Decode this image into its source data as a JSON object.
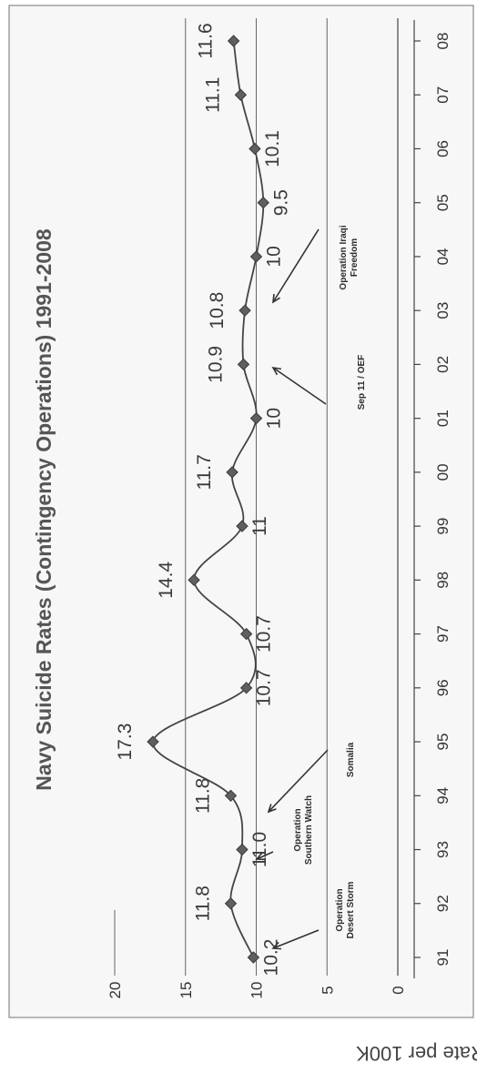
{
  "chart_data": {
    "type": "line",
    "title": "Navy Suicide Rates (Contingency Operations) 1991-2008",
    "ylabel": "Rate per 100K",
    "xlabel": "",
    "x": [
      "91",
      "92",
      "93",
      "94",
      "95",
      "96",
      "97",
      "98",
      "99",
      "00",
      "01",
      "02",
      "03",
      "04",
      "05",
      "06",
      "07",
      "08"
    ],
    "series": [
      {
        "values": [
          10.2,
          11.8,
          11.0,
          11.8,
          17.3,
          10.7,
          10.7,
          14.4,
          11.0,
          11.7,
          10.0,
          10.9,
          10.8,
          10.0,
          9.5,
          10.1,
          11.1,
          11.6
        ]
      }
    ],
    "data_labels": [
      "10.2",
      "11.8",
      "11.0",
      "11.8",
      "17.3",
      "10.7",
      "10.7",
      "14.4",
      "11",
      "11.7",
      "10",
      "10.9",
      "10.8",
      "10",
      "9.5",
      "10.1",
      "11.1",
      "11.6"
    ],
    "ylim": [
      0,
      20
    ],
    "yticks": [
      "0",
      "5",
      "10",
      "15",
      "20"
    ],
    "grid": true,
    "annotations": [
      {
        "lines": [
          "Operation",
          "Desert Storm"
        ],
        "year": "91"
      },
      {
        "lines": [
          "Operation",
          "Southern Watch"
        ],
        "year": "92"
      },
      {
        "lines": [
          "Somalia"
        ],
        "year": "93"
      },
      {
        "lines": [
          "Sep 11 / OEF"
        ],
        "year": "02"
      },
      {
        "lines": [
          "Operation Iraqi",
          "Freedom"
        ],
        "year": "03"
      }
    ],
    "colors": {
      "line": "#444444",
      "marker": "#5f5f5f",
      "grid": "#666666"
    }
  }
}
